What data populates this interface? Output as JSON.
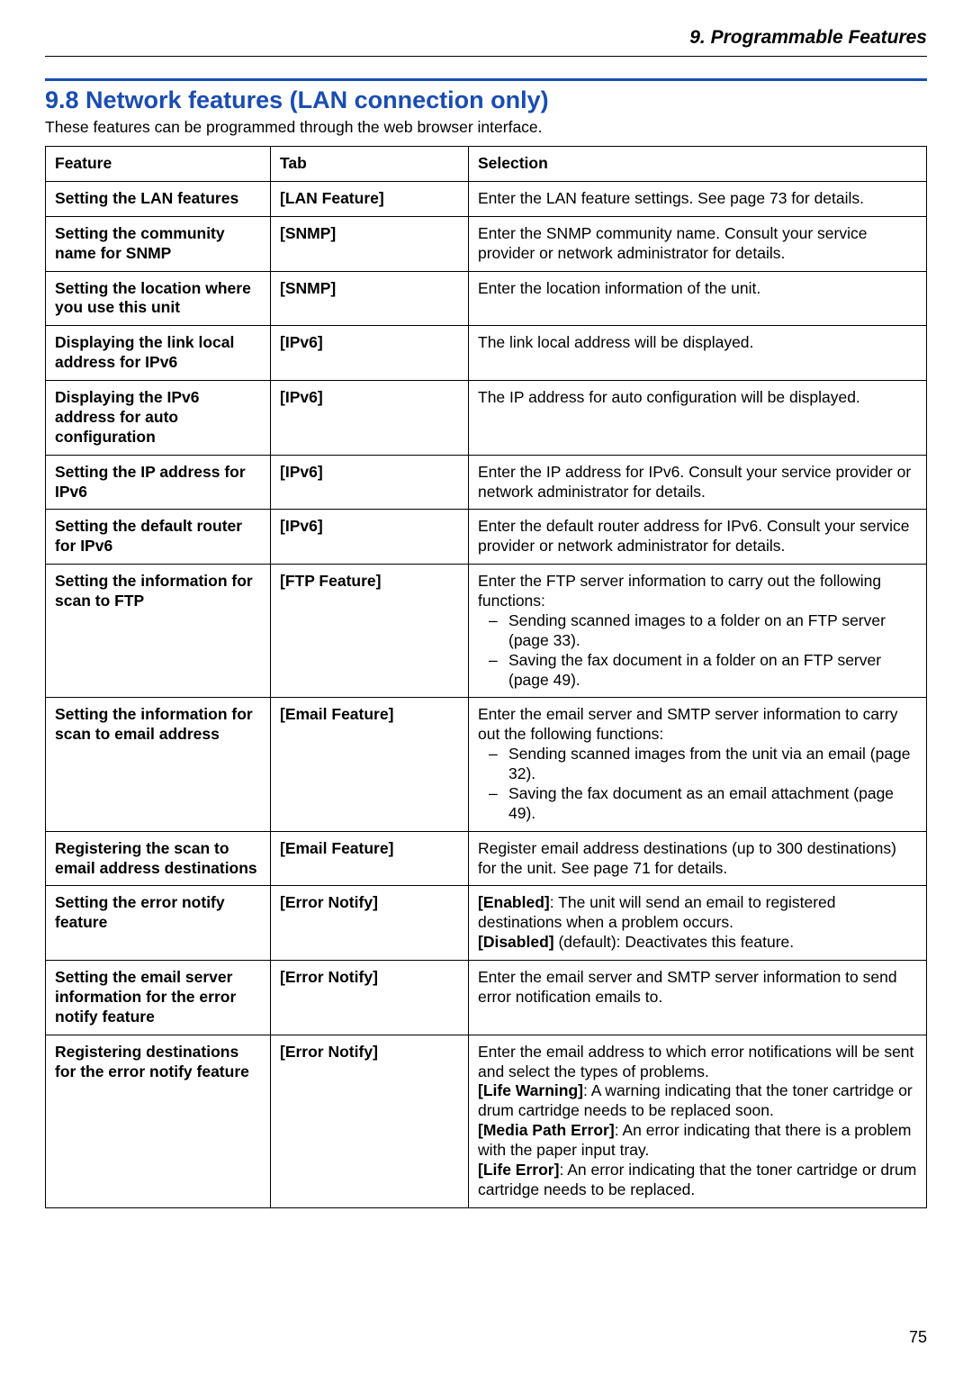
{
  "chapter_header": "9. Programmable Features",
  "section_title": "9.8 Network features (LAN connection only)",
  "intro": "These features can be programmed through the web browser interface.",
  "columns": {
    "feature": "Feature",
    "tab": "Tab",
    "selection": "Selection"
  },
  "page_number": "75",
  "brackets": {
    "open": "[",
    "close": "]"
  },
  "rows": [
    {
      "feature": "Setting the LAN features",
      "tab": "LAN Feature",
      "sel": {
        "type": "plain",
        "text": "Enter the LAN feature settings. See page 73 for details."
      }
    },
    {
      "feature": "Setting the community name for SNMP",
      "tab": "SNMP",
      "sel": {
        "type": "plain",
        "text": "Enter the SNMP community name. Consult your service provider or network administrator for details."
      }
    },
    {
      "feature": "Setting the location where you use this unit",
      "tab": "SNMP",
      "sel": {
        "type": "plain",
        "text": "Enter the location information of the unit."
      }
    },
    {
      "feature": "Displaying the link local address for IPv6",
      "tab": "IPv6",
      "sel": {
        "type": "plain",
        "text": "The link local address will be displayed."
      }
    },
    {
      "feature": "Displaying the IPv6 address for auto configuration",
      "tab": "IPv6",
      "sel": {
        "type": "plain",
        "text": "The IP address for auto configuration will be displayed."
      }
    },
    {
      "feature": "Setting the IP address for IPv6",
      "tab": "IPv6",
      "sel": {
        "type": "plain",
        "text": "Enter the IP address for IPv6. Consult your service provider or network administrator for details."
      }
    },
    {
      "feature": "Setting the default router for IPv6",
      "tab": "IPv6",
      "sel": {
        "type": "plain",
        "text": "Enter the default router address for IPv6. Consult your service provider or network administrator for details."
      }
    },
    {
      "feature": "Setting the information for scan to FTP",
      "tab": "FTP Feature",
      "sel": {
        "type": "list",
        "lead": "Enter the FTP server information to carry out the following functions:",
        "items": [
          "Sending scanned images to a folder on an FTP server (page 33).",
          "Saving the fax document in a folder on an FTP server (page 49)."
        ]
      }
    },
    {
      "feature": "Setting the information for scan to email address",
      "tab": "Email Feature",
      "sel": {
        "type": "list",
        "lead": "Enter the email server and SMTP server information to carry out the following functions:",
        "items": [
          "Sending scanned images from the unit via an email (page 32).",
          "Saving the fax document as an email attachment (page 49)."
        ]
      }
    },
    {
      "feature": "Registering the scan to email address destinations",
      "tab": "Email Feature",
      "sel": {
        "type": "plain",
        "text": "Register email address destinations (up to 300 destinations) for the unit. See page 71 for details."
      }
    },
    {
      "feature": "Setting the error notify feature",
      "tab": "Error Notify",
      "sel": {
        "type": "options",
        "opts": [
          {
            "label": "Enabled",
            "text": ": The unit will send an email to registered destinations when a problem occurs."
          },
          {
            "label": "Disabled",
            "text": " (default): Deactivates this feature."
          }
        ]
      }
    },
    {
      "feature": "Setting the email server information for the error notify feature",
      "tab": "Error Notify",
      "sel": {
        "type": "plain",
        "text": "Enter the email server and SMTP server information to send error notification emails to."
      }
    },
    {
      "feature": "Registering destinations for the error notify feature",
      "tab": "Error Notify",
      "sel": {
        "type": "lead_options",
        "lead": "Enter the email address to which error notifications will be sent and select the types of problems.",
        "opts": [
          {
            "label": "Life Warning",
            "text": ": A warning indicating that the toner cartridge or drum cartridge needs to be replaced soon."
          },
          {
            "label": "Media Path Error",
            "text": ": An error indicating that there is a problem with the paper input tray."
          },
          {
            "label": "Life Error",
            "text": ": An error indicating that the toner cartridge or drum cartridge needs to be replaced."
          }
        ]
      }
    }
  ]
}
